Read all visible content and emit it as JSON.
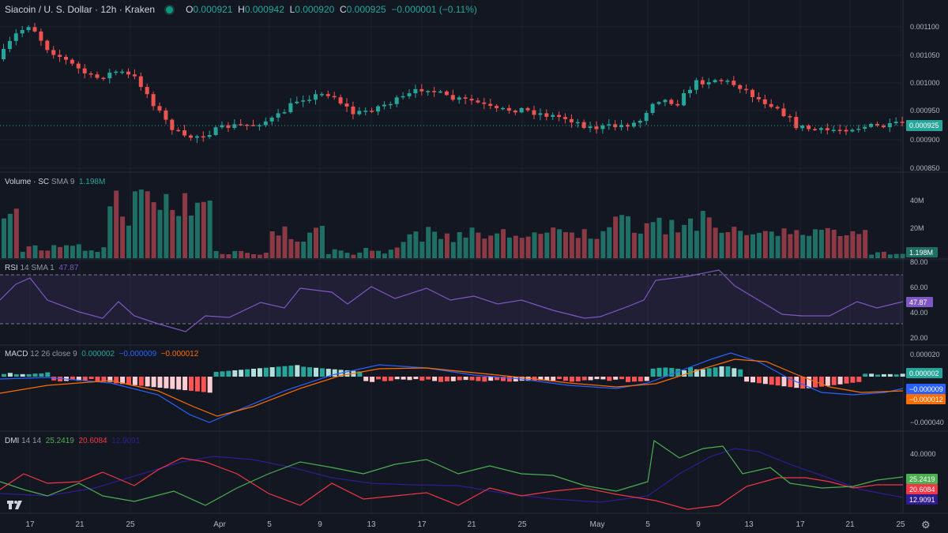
{
  "header": {
    "symbol": "Siacoin / U. S. Dollar · 12h · Kraken",
    "ohlc": [
      {
        "k": "O",
        "v": "0.000921"
      },
      {
        "k": "H",
        "v": "0.000942"
      },
      {
        "k": "L",
        "v": "0.000920"
      },
      {
        "k": "C",
        "v": "0.000925"
      }
    ],
    "change": "−0.000001 (−0.11%)"
  },
  "price_axis": {
    "ticks": [
      "0.001100",
      "0.001050",
      "0.001000",
      "0.000950",
      "0.000900",
      "0.000850"
    ],
    "last": "0.000925"
  },
  "volume": {
    "label": "Volume · SC",
    "sub": "SMA 9",
    "value": "1.198M",
    "ticks": [
      "40M",
      "20M"
    ],
    "last": "1.198M"
  },
  "rsi": {
    "label": "RSI",
    "sub": "14 SMA 1",
    "value": "47.87",
    "ticks": [
      "80.00",
      "60.00",
      "40.00",
      "20.00"
    ],
    "last": "47.87"
  },
  "macd": {
    "label": "MACD",
    "sub": "12 26 close 9",
    "v1": "0.000002",
    "v2": "−0.000009",
    "v3": "−0.000012",
    "ticks": [
      "0.000020",
      "−0.000040"
    ],
    "last_hist": "0.000002",
    "last_macd": "−0.000009",
    "last_signal": "−0.000012"
  },
  "dmi": {
    "label": "DMI",
    "sub": "14 14",
    "plus": "25.2419",
    "minus": "20.6084",
    "adx": "12.9091",
    "ticks": [
      "40.0000"
    ],
    "last_plus": "25.2419",
    "last_minus": "20.6084",
    "last_adx": "12.9091"
  },
  "time_axis": [
    "17",
    "21",
    "25",
    "Apr",
    "5",
    "9",
    "13",
    "17",
    "21",
    "25",
    "May",
    "5",
    "9",
    "13",
    "17",
    "21",
    "25"
  ],
  "colors": {
    "up": "#26a69a",
    "down": "#ef5350",
    "volume_up": "#1f6f65",
    "volume_down": "#8b3a45",
    "rsi": "#7e57c2",
    "macd": "#2962ff",
    "signal": "#ff6d00",
    "dmi_plus": "#4caf50",
    "dmi_minus": "#f23645",
    "adx": "#311b92"
  },
  "icons": [
    "tradingview-logo-icon",
    "settings-gear-icon"
  ]
}
